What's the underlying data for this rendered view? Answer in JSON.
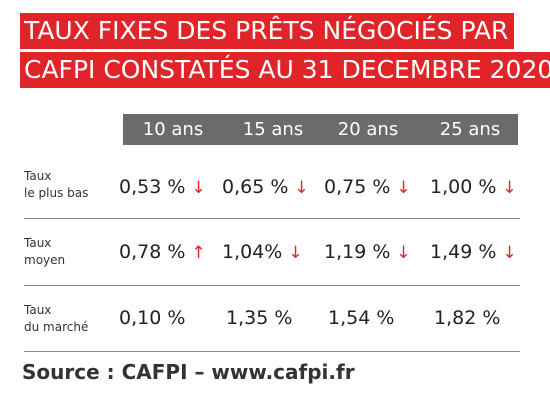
{
  "title_line_1": "TAUX FIXES DES PRÊTS NÉGOCIÉS PAR",
  "title_line_2": "CAFPI CONSTATÉS AU 31 DECEMBRE 2020",
  "source": "Source : CAFPI – www.cafpi.fr",
  "colors": {
    "accent": "#e0242a",
    "header": "#6b6b6b"
  },
  "chart_data": {
    "type": "table",
    "title": "TAUX FIXES DES PRÊTS NÉGOCIÉS PAR CAFPI CONSTATÉS AU 31 DECEMBRE 2020",
    "columns": [
      "10 ans",
      "15 ans",
      "20 ans",
      "25 ans"
    ],
    "rows": [
      {
        "label_1": "Taux",
        "label_2": "le plus bas",
        "cells": [
          {
            "value": "0,53 %",
            "arrow": "↓"
          },
          {
            "value": "0,65 %",
            "arrow": "↓"
          },
          {
            "value": "0,75 %",
            "arrow": "↓"
          },
          {
            "value": "1,00 %",
            "arrow": "↓"
          }
        ]
      },
      {
        "label_1": "Taux",
        "label_2": "moyen",
        "cells": [
          {
            "value": "0,78 %",
            "arrow": "↑"
          },
          {
            "value": "1,04%",
            "arrow": "↓"
          },
          {
            "value": "1,19 %",
            "arrow": "↓"
          },
          {
            "value": "1,49 %",
            "arrow": "↓"
          }
        ]
      },
      {
        "label_1": "Taux",
        "label_2": "du marché",
        "cells": [
          {
            "value": "0,10 %",
            "arrow": ""
          },
          {
            "value": "1,35 %",
            "arrow": ""
          },
          {
            "value": "1,54 %",
            "arrow": ""
          },
          {
            "value": "1,82 %",
            "arrow": ""
          }
        ]
      }
    ]
  }
}
